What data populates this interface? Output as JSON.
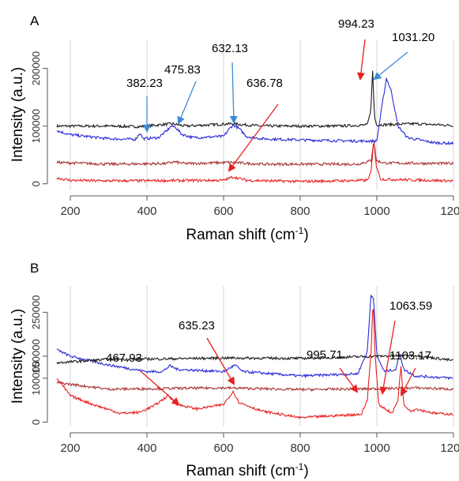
{
  "chart_data": [
    {
      "type": "line",
      "panel_label": "A",
      "xlabel": "Raman shift (cm",
      "xlabel_superscript": "-1",
      "xlabel_suffix": ")",
      "ylabel": "Intensity (a.u.)",
      "xlim": [
        165,
        1200
      ],
      "ylim": [
        -10000,
        250000
      ],
      "xticks": [
        200,
        400,
        600,
        800,
        1000,
        1200
      ],
      "xtick_labels": [
        "200",
        "400",
        "600",
        "800",
        "1000",
        "1200"
      ],
      "yticks": [
        0,
        100000,
        200000
      ],
      "ytick_labels": [
        "0",
        "100000",
        "200000"
      ],
      "grid": true,
      "series": [
        {
          "color": "#1a1a1a",
          "baseline": 100000,
          "points": [
            [
              165,
              100000
            ],
            [
              300,
              100000
            ],
            [
              380,
              99000
            ],
            [
              465,
              104000
            ],
            [
              500,
              100000
            ],
            [
              620,
              104000
            ],
            [
              700,
              100000
            ],
            [
              900,
              100000
            ],
            [
              975,
              102000
            ],
            [
              984,
              125000
            ],
            [
              989,
              195000
            ],
            [
              994,
              115000
            ],
            [
              1000,
              102000
            ],
            [
              1100,
              104000
            ],
            [
              1200,
              101000
            ]
          ]
        },
        {
          "color": "#2a2ad8",
          "baseline": 70000,
          "points": [
            [
              165,
              92000
            ],
            [
              200,
              85000
            ],
            [
              300,
              78000
            ],
            [
              370,
              77000
            ],
            [
              382,
              88000
            ],
            [
              390,
              78000
            ],
            [
              430,
              80000
            ],
            [
              452,
              92000
            ],
            [
              463,
              100000
            ],
            [
              475,
              98000
            ],
            [
              490,
              86000
            ],
            [
              520,
              80000
            ],
            [
              600,
              82000
            ],
            [
              615,
              95000
            ],
            [
              625,
              102000
            ],
            [
              640,
              96000
            ],
            [
              660,
              82000
            ],
            [
              700,
              78000
            ],
            [
              800,
              76000
            ],
            [
              950,
              74000
            ],
            [
              1000,
              74000
            ],
            [
              1010,
              120000
            ],
            [
              1025,
              183000
            ],
            [
              1038,
              160000
            ],
            [
              1055,
              100000
            ],
            [
              1080,
              80000
            ],
            [
              1150,
              71000
            ],
            [
              1200,
              70000
            ]
          ]
        },
        {
          "color": "#a83232",
          "baseline": 35000,
          "points": [
            [
              165,
              37000
            ],
            [
              300,
              34000
            ],
            [
              450,
              35000
            ],
            [
              470,
              38000
            ],
            [
              500,
              35000
            ],
            [
              620,
              37000
            ],
            [
              700,
              34000
            ],
            [
              950,
              34000
            ],
            [
              985,
              40000
            ],
            [
              992,
              75000
            ],
            [
              999,
              40000
            ],
            [
              1020,
              36000
            ],
            [
              1200,
              35000
            ]
          ]
        },
        {
          "color": "#e82020",
          "baseline": 5000,
          "points": [
            [
              165,
              10000
            ],
            [
              200,
              6000
            ],
            [
              300,
              5000
            ],
            [
              600,
              6000
            ],
            [
              625,
              12000
            ],
            [
              660,
              6000
            ],
            [
              800,
              4000
            ],
            [
              975,
              6000
            ],
            [
              985,
              20000
            ],
            [
              992,
              75000
            ],
            [
              999,
              30000
            ],
            [
              1010,
              8000
            ],
            [
              1200,
              5000
            ]
          ]
        }
      ],
      "annotations": [
        {
          "text": "382.23",
          "arrow_color": "#3c8ad6"
        },
        {
          "text": "475.83",
          "arrow_color": "#3c8ad6"
        },
        {
          "text": "632.13",
          "arrow_color": "#3c8ad6"
        },
        {
          "text": "636.78",
          "arrow_color": "#e82020"
        },
        {
          "text": "994.23",
          "arrow_color": "#e82020"
        },
        {
          "text": "1031.20",
          "arrow_color": "#3c8ad6"
        }
      ]
    },
    {
      "type": "line",
      "panel_label": "B",
      "xlabel": "Raman shift (cm",
      "xlabel_superscript": "-1",
      "xlabel_suffix": ")",
      "ylabel": "Intensity (a.u.)",
      "xlim": [
        165,
        1200
      ],
      "ylim": [
        -10000,
        310000
      ],
      "xticks": [
        200,
        400,
        600,
        800,
        1000,
        1200
      ],
      "xtick_labels": [
        "200",
        "400",
        "600",
        "800",
        "1000",
        "1200"
      ],
      "yticks": [
        0,
        100000,
        150000,
        250000
      ],
      "ytick_labels": [
        "0",
        "100000",
        "150000",
        "250000"
      ],
      "grid": true,
      "series": [
        {
          "color": "#2a2ad8",
          "baseline": 100000,
          "points": [
            [
              165,
              165000
            ],
            [
              200,
              150000
            ],
            [
              300,
              130000
            ],
            [
              400,
              115000
            ],
            [
              440,
              115000
            ],
            [
              460,
              128000
            ],
            [
              480,
              120000
            ],
            [
              600,
              115000
            ],
            [
              620,
              125000
            ],
            [
              630,
              130000
            ],
            [
              650,
              115000
            ],
            [
              800,
              105000
            ],
            [
              950,
              110000
            ],
            [
              975,
              160000
            ],
            [
              985,
              290000
            ],
            [
              992,
              280000
            ],
            [
              1000,
              150000
            ],
            [
              1020,
              115000
            ],
            [
              1050,
              120000
            ],
            [
              1060,
              158000
            ],
            [
              1070,
              120000
            ],
            [
              1100,
              105000
            ],
            [
              1200,
              100000
            ]
          ]
        },
        {
          "color": "#1a1a1a",
          "baseline": 145000,
          "points": [
            [
              165,
              135000
            ],
            [
              300,
              143000
            ],
            [
              450,
              144000
            ],
            [
              600,
              146000
            ],
            [
              800,
              145000
            ],
            [
              1000,
              150000
            ],
            [
              1100,
              152000
            ],
            [
              1200,
              140000
            ]
          ]
        },
        {
          "color": "#a83232",
          "baseline": 75000,
          "points": [
            [
              165,
              90000
            ],
            [
              300,
              75000
            ],
            [
              600,
              78000
            ],
            [
              800,
              74000
            ],
            [
              1000,
              76000
            ],
            [
              1100,
              78000
            ],
            [
              1200,
              75000
            ]
          ]
        },
        {
          "color": "#e82020",
          "baseline": 20000,
          "points": [
            [
              165,
              100000
            ],
            [
              200,
              60000
            ],
            [
              260,
              40000
            ],
            [
              330,
              20000
            ],
            [
              380,
              22000
            ],
            [
              420,
              38000
            ],
            [
              455,
              60000
            ],
            [
              480,
              40000
            ],
            [
              530,
              30000
            ],
            [
              600,
              40000
            ],
            [
              625,
              70000
            ],
            [
              640,
              45000
            ],
            [
              700,
              25000
            ],
            [
              800,
              10000
            ],
            [
              900,
              15000
            ],
            [
              960,
              18000
            ],
            [
              975,
              50000
            ],
            [
              985,
              160000
            ],
            [
              990,
              280000
            ],
            [
              995,
              160000
            ],
            [
              1005,
              40000
            ],
            [
              1040,
              20000
            ],
            [
              1055,
              50000
            ],
            [
              1063,
              130000
            ],
            [
              1070,
              40000
            ],
            [
              1090,
              25000
            ],
            [
              1103,
              30000
            ],
            [
              1150,
              20000
            ],
            [
              1200,
              18000
            ]
          ]
        }
      ],
      "annotations": [
        {
          "text": "467.93",
          "arrow_color": "#e82020"
        },
        {
          "text": "635.23",
          "arrow_color": "#e82020"
        },
        {
          "text": "995.71",
          "arrow_color": "#e82020"
        },
        {
          "text": "1063.59",
          "arrow_color": "#e82020"
        },
        {
          "text": "1103.17",
          "arrow_color": "#e82020"
        }
      ]
    }
  ]
}
